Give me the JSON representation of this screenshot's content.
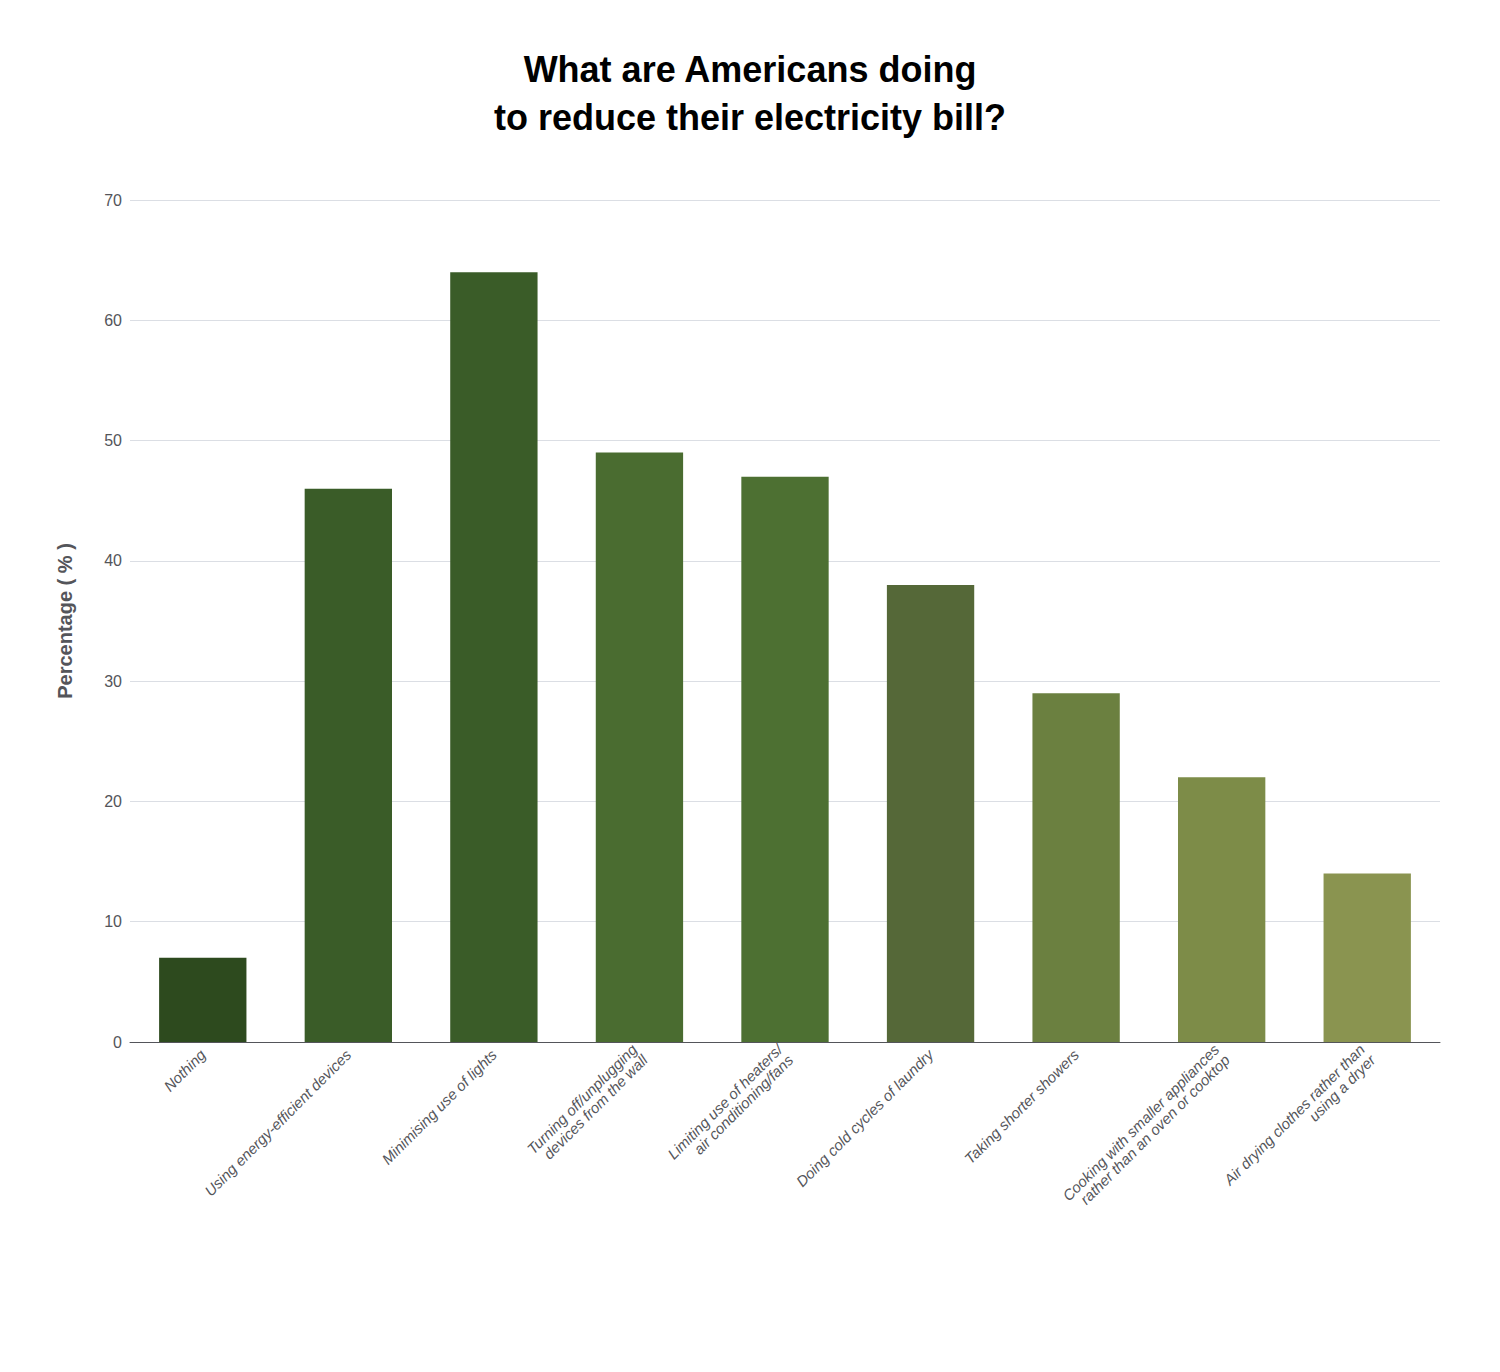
{
  "chart_data": {
    "type": "bar",
    "title": "What are Americans doing\nto reduce their electricity bill?",
    "ylabel": "Percentage ( % )",
    "categories": [
      "Nothing",
      "Using energy-efficient devices",
      "Minimising use of lights",
      "Turning off/unplugging\ndevices from the wall",
      "Limiting use of heaters/\nair conditioning/fans",
      "Doing cold cycles of laundry",
      "Taking shorter showers",
      "Cooking with smaller appliances\nrather than an oven or cooktop",
      "Air drying clothes rather than\nusing a dryer"
    ],
    "values": [
      7,
      46,
      64,
      49,
      47,
      38,
      29,
      22,
      14
    ],
    "colors": [
      "#2d4a1e",
      "#3a5c28",
      "#3a5c28",
      "#4a6c30",
      "#4d7032",
      "#556838",
      "#6b8040",
      "#7d8c48",
      "#8a9450"
    ],
    "ylim": [
      0,
      70
    ],
    "yticks": [
      0,
      10,
      20,
      30,
      40,
      50,
      60,
      70
    ],
    "grid": true
  }
}
